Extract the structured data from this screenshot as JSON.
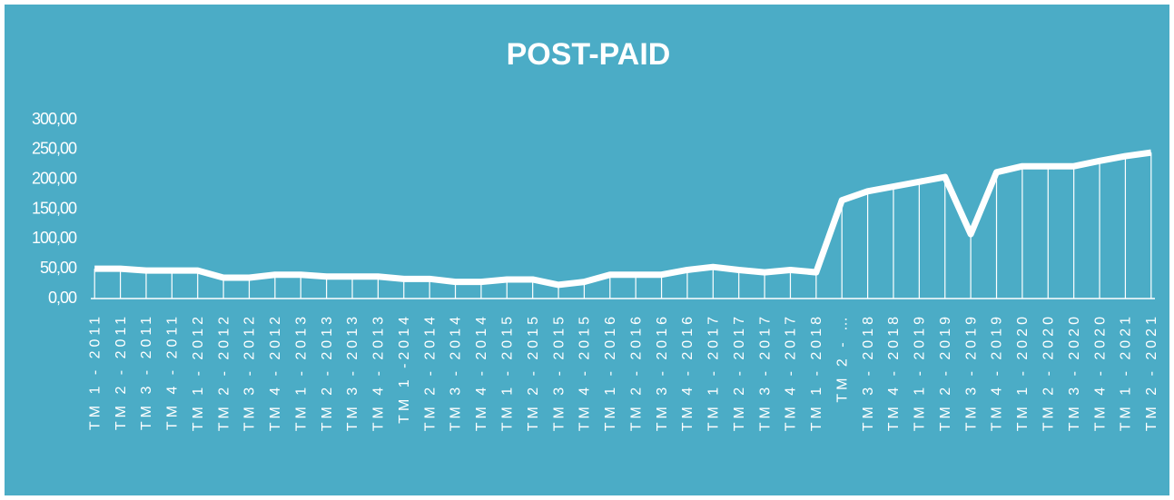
{
  "chart_data": {
    "type": "line",
    "title": "POST-PAID",
    "categories": [
      "TM 1 - 2011",
      "TM 2 - 2011",
      "TM 3 - 2011",
      "TM 4 - 2011",
      "TM 1 - 2012",
      "TM 2 - 2012",
      "TM 3 - 2012",
      "TM 4 - 2012",
      "TM 1 - 2013",
      "TM 2 - 2013",
      "TM 3 - 2013",
      "TM 4 - 2013",
      "TM 1 -2014",
      "TM 2 - 2014",
      "TM 3 - 2014",
      "TM 4 - 2014",
      "TM 1 - 2015",
      "TM 2 - 2015",
      "TM 3 - 2015",
      "TM 4 - 2015",
      "TM 1 - 2016",
      "TM 2 - 2016",
      "TM 3 - 2016",
      "TM 4 - 2016",
      "TM 1 - 2017",
      "TM 2 - 2017",
      "TM 3 - 2017",
      "TM 4 - 2017",
      "TM 1 - 2018",
      "TM 2 - …",
      "TM 3 - 2018",
      "TM 4 - 2018",
      "TM 1 - 2019",
      "TM 2 - 2019",
      "TM 3 - 2019",
      "TM 4 - 2019",
      "TM 1 - 2020",
      "TM 2 - 2020",
      "TM 3 - 2020",
      "TM 4 - 2020",
      "TM 1 - 2021",
      "TM 2 - 2021"
    ],
    "values": [
      50,
      50,
      47,
      47,
      47,
      35,
      35,
      40,
      40,
      37,
      37,
      37,
      33,
      33,
      28,
      28,
      32,
      32,
      23,
      28,
      40,
      40,
      40,
      48,
      53,
      48,
      44,
      48,
      44,
      165,
      180,
      188,
      196,
      204,
      108,
      212,
      222,
      222,
      222,
      231,
      239,
      245
    ],
    "color": "#ffffff",
    "ylim": [
      0,
      300
    ],
    "yticks": [
      {
        "value": 0,
        "label": "0,00"
      },
      {
        "value": 50,
        "label": "50,00"
      },
      {
        "value": 100,
        "label": "100,00"
      },
      {
        "value": 150,
        "label": "150,00"
      },
      {
        "value": 200,
        "label": "200,00"
      },
      {
        "value": 250,
        "label": "250,00"
      },
      {
        "value": 300,
        "label": "300,00"
      }
    ],
    "drop_lines": true
  }
}
